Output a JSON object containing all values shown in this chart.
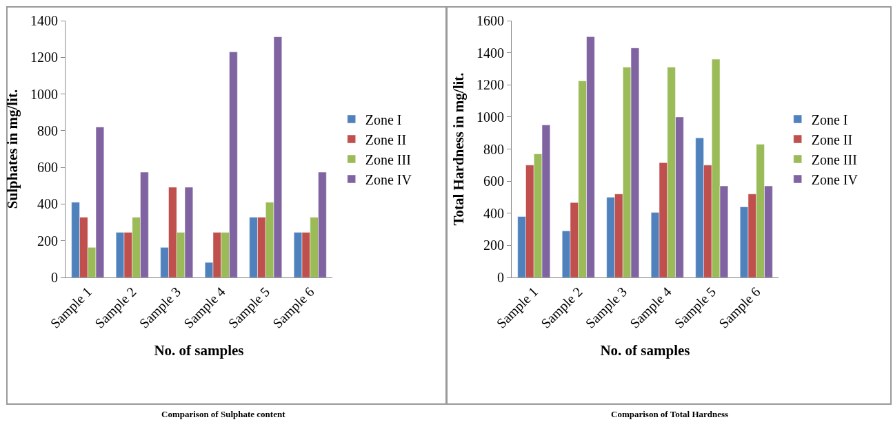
{
  "chart_data": [
    {
      "type": "bar",
      "xlabel": "No. of samples",
      "ylabel": "Sulphates in mg/lit.",
      "annotations": [
        "Comparison of Sulphate content"
      ],
      "categories": [
        "Sample 1",
        "Sample 2",
        "Sample 3",
        "Sample 4",
        "Sample 5",
        "Sample 6"
      ],
      "ylim": [
        0,
        1400
      ],
      "yticks": [
        0,
        200,
        400,
        600,
        800,
        1000,
        1200,
        1400
      ],
      "grid": false,
      "legend": "right",
      "series": [
        {
          "name": "Zone I",
          "color": "#4f81bd",
          "values": [
            410,
            246,
            164,
            82,
            328,
            246
          ]
        },
        {
          "name": "Zone II",
          "color": "#c0504d",
          "values": [
            328,
            246,
            492,
            246,
            328,
            246
          ]
        },
        {
          "name": "Zone III",
          "color": "#9bbb59",
          "values": [
            164,
            328,
            246,
            246,
            410,
            328
          ]
        },
        {
          "name": "Zone IV",
          "color": "#8064a2",
          "values": [
            820,
            574,
            492,
            1230,
            1312,
            574
          ]
        }
      ]
    },
    {
      "type": "bar",
      "xlabel": "No. of samples",
      "ylabel": "Total Hardness in mg/lit.",
      "annotations": [
        "Comparison of Total Hardness"
      ],
      "categories": [
        "Sample 1",
        "Sample 2",
        "Sample 3",
        "Sample 4",
        "Sample 5",
        "Sample 6"
      ],
      "ylim": [
        0,
        1600
      ],
      "yticks": [
        0,
        200,
        400,
        600,
        800,
        1000,
        1200,
        1400,
        1600
      ],
      "grid": false,
      "legend": "right",
      "series": [
        {
          "name": "Zone I",
          "color": "#4f81bd",
          "values": [
            380,
            290,
            500,
            405,
            870,
            440
          ]
        },
        {
          "name": "Zone II",
          "color": "#c0504d",
          "values": [
            700,
            467,
            520,
            715,
            700,
            520
          ]
        },
        {
          "name": "Zone III",
          "color": "#9bbb59",
          "values": [
            770,
            1225,
            1310,
            1310,
            1360,
            830
          ]
        },
        {
          "name": "Zone IV",
          "color": "#8064a2",
          "values": [
            950,
            1500,
            1430,
            1000,
            570,
            570
          ]
        }
      ]
    }
  ]
}
